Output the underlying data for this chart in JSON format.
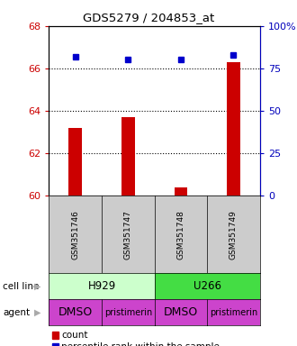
{
  "title": "GDS5279 / 204853_at",
  "samples": [
    "GSM351746",
    "GSM351747",
    "GSM351748",
    "GSM351749"
  ],
  "bar_values": [
    63.2,
    63.7,
    60.4,
    66.3
  ],
  "percentile_values": [
    82,
    80,
    80,
    83
  ],
  "ylim_left": [
    60,
    68
  ],
  "ylim_right": [
    0,
    100
  ],
  "yticks_left": [
    60,
    62,
    64,
    66,
    68
  ],
  "yticks_right": [
    0,
    25,
    50,
    75,
    100
  ],
  "bar_color": "#cc0000",
  "dot_color": "#0000cc",
  "agents": [
    "DMSO",
    "pristimerin",
    "DMSO",
    "pristimerin"
  ],
  "cell_line_h929_color": "#ccffcc",
  "cell_line_u266_color": "#44dd44",
  "agent_color": "#cc44cc",
  "sample_bg": "#cccccc",
  "agent_font_sizes": [
    9,
    7,
    9,
    7
  ]
}
